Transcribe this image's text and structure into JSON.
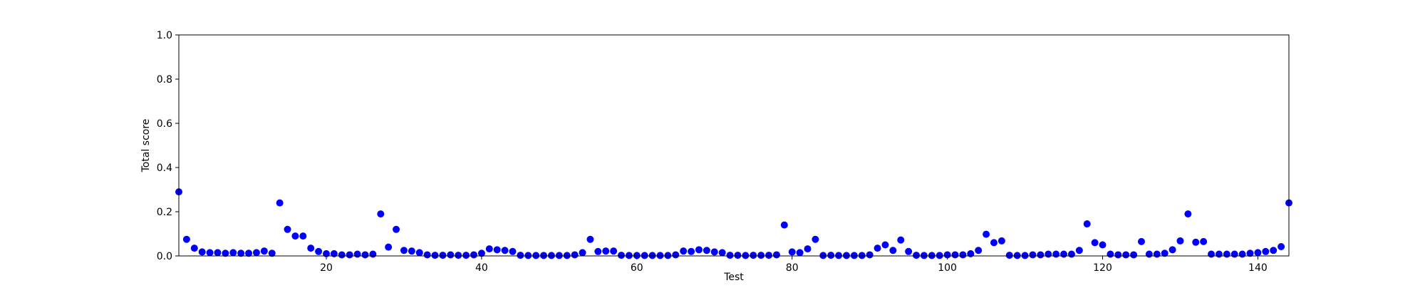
{
  "chart_data": {
    "type": "scatter",
    "x_label": "Test",
    "y_label": "Total score",
    "color": "#0000ff",
    "xlim": [
      1,
      144
    ],
    "ylim": [
      0,
      1
    ],
    "xticks": [
      20,
      40,
      60,
      80,
      100,
      120,
      140
    ],
    "yticks": [
      {
        "value": 0,
        "label": "0.0"
      },
      0.2,
      0.4,
      0.6,
      0.8,
      {
        "value": 1,
        "label": "1.0"
      }
    ],
    "grid": false,
    "x": [
      1,
      2,
      3,
      4,
      5,
      6,
      7,
      8,
      9,
      10,
      11,
      12,
      13,
      14,
      15,
      16,
      17,
      18,
      19,
      20,
      21,
      22,
      23,
      24,
      25,
      26,
      27,
      28,
      29,
      30,
      31,
      32,
      33,
      34,
      35,
      36,
      37,
      38,
      39,
      40,
      41,
      42,
      43,
      44,
      45,
      46,
      47,
      48,
      49,
      50,
      51,
      52,
      53,
      54,
      55,
      56,
      57,
      58,
      59,
      60,
      61,
      62,
      63,
      64,
      65,
      66,
      67,
      68,
      69,
      70,
      71,
      72,
      73,
      74,
      75,
      76,
      77,
      78,
      79,
      80,
      81,
      82,
      83,
      84,
      85,
      86,
      87,
      88,
      89,
      90,
      91,
      92,
      93,
      94,
      95,
      96,
      97,
      98,
      99,
      100,
      101,
      102,
      103,
      104,
      105,
      106,
      107,
      108,
      109,
      110,
      111,
      112,
      113,
      114,
      115,
      116,
      117,
      118,
      119,
      120,
      121,
      122,
      123,
      124,
      125,
      126,
      127,
      128,
      129,
      130,
      131,
      132,
      133,
      134,
      135,
      136,
      137,
      138,
      139,
      140,
      141,
      142,
      143,
      144
    ],
    "values": [
      0.29,
      0.075,
      0.035,
      0.018,
      0.015,
      0.015,
      0.012,
      0.015,
      0.012,
      0.012,
      0.015,
      0.022,
      0.012,
      0.24,
      0.12,
      0.09,
      0.09,
      0.035,
      0.02,
      0.01,
      0.01,
      0.005,
      0.005,
      0.008,
      0.005,
      0.008,
      0.19,
      0.04,
      0.12,
      0.025,
      0.022,
      0.015,
      0.005,
      0.003,
      0.003,
      0.005,
      0.003,
      0.003,
      0.005,
      0.012,
      0.032,
      0.028,
      0.025,
      0.02,
      0.003,
      0.002,
      0.002,
      0.002,
      0.002,
      0.002,
      0.002,
      0.005,
      0.015,
      0.075,
      0.02,
      0.022,
      0.022,
      0.003,
      0.002,
      0.002,
      0.002,
      0.002,
      0.002,
      0.002,
      0.005,
      0.022,
      0.02,
      0.028,
      0.025,
      0.018,
      0.015,
      0.003,
      0.003,
      0.002,
      0.003,
      0.003,
      0.003,
      0.005,
      0.14,
      0.018,
      0.015,
      0.032,
      0.075,
      0.002,
      0.003,
      0.002,
      0.002,
      0.002,
      0.002,
      0.005,
      0.035,
      0.05,
      0.025,
      0.072,
      0.02,
      0.003,
      0.002,
      0.002,
      0.002,
      0.005,
      0.005,
      0.005,
      0.01,
      0.025,
      0.098,
      0.06,
      0.068,
      0.003,
      0.002,
      0.002,
      0.005,
      0.005,
      0.008,
      0.008,
      0.008,
      0.008,
      0.025,
      0.145,
      0.06,
      0.05,
      0.008,
      0.005,
      0.005,
      0.005,
      0.065,
      0.008,
      0.008,
      0.012,
      0.028,
      0.068,
      0.19,
      0.062,
      0.065,
      0.008,
      0.008,
      0.008,
      0.008,
      0.008,
      0.012,
      0.015,
      0.02,
      0.025,
      0.042,
      0.24
    ]
  }
}
